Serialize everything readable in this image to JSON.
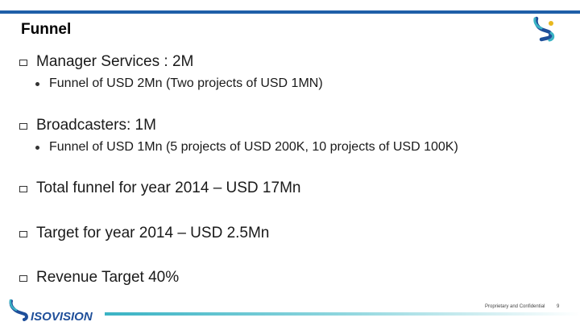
{
  "slide": {
    "title": "Funnel",
    "items": [
      {
        "text": "Manager Services : 2M",
        "sub": "Funnel of USD 2Mn (Two projects of USD 1MN)"
      },
      {
        "text": "Broadcasters: 1M",
        "sub": "Funnel of USD 1Mn (5 projects of USD 200K, 10 projects of USD 100K)"
      },
      {
        "text": "Total funnel for  year 2014 – USD 17Mn"
      },
      {
        "text": "Target for year 2014 – USD 2.5Mn"
      },
      {
        "text": "Revenue Target  40%"
      }
    ]
  },
  "footer": {
    "brand": "ISOVISION",
    "confidential": "Proprietary and Confidential",
    "page": "9"
  },
  "colors": {
    "accent": "#1f5fa8",
    "logo_teal": "#3ab3c4",
    "logo_blue": "#1f4f9a",
    "logo_yellow": "#e8b81f"
  }
}
